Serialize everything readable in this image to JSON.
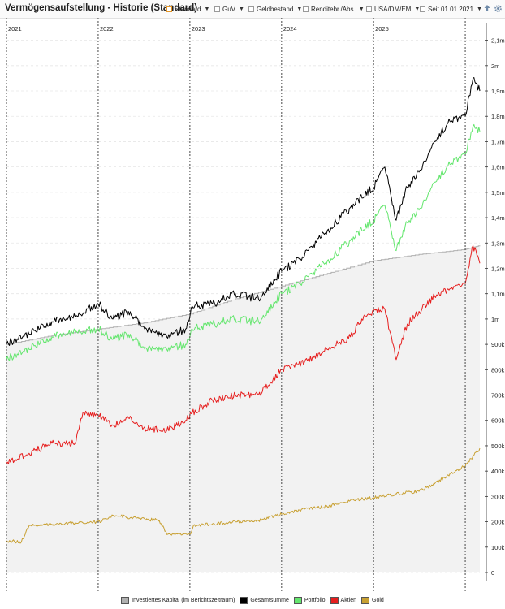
{
  "toolbar": {
    "title": "Vermögensaufstellung - Historie (Standard)",
    "items": [
      {
        "label": "Standard",
        "accent": "#e2962a"
      },
      {
        "label": "GuV"
      },
      {
        "label": "Geldbestand"
      },
      {
        "label": "Renditebr./Abs."
      },
      {
        "label": "USA/DM/EM"
      },
      {
        "label": "Seit 01.01.2021"
      }
    ],
    "icons": [
      "export-icon",
      "gear-icon"
    ]
  },
  "chart_data": {
    "type": "line",
    "x_range": [
      "2021-01-01",
      "2026-02-28"
    ],
    "ylim": [
      0,
      2150000
    ],
    "y_ticks": [
      0,
      100000,
      200000,
      300000,
      400000,
      500000,
      600000,
      700000,
      800000,
      900000,
      1000000,
      1100000,
      1200000,
      1300000,
      1400000,
      1500000,
      1600000,
      1700000,
      1800000,
      1900000,
      2000000,
      2100000
    ],
    "y_tick_labels": [
      "0",
      "100k",
      "200k",
      "300k",
      "400k",
      "500k",
      "600k",
      "700k",
      "800k",
      "900k",
      "1m",
      "1,1m",
      "1,2m",
      "1,3m",
      "1,4m",
      "1,5m",
      "1,6m",
      "1,7m",
      "1,8m",
      "1,9m",
      "2m",
      "2,1m"
    ],
    "year_markers": [
      {
        "date": "2021-01-01",
        "label": "2021"
      },
      {
        "date": "2022-01-01",
        "label": "2022"
      },
      {
        "date": "2023-01-01",
        "label": "2023"
      },
      {
        "date": "2024-01-01",
        "label": "2024"
      },
      {
        "date": "2025-01-01",
        "label": "2025"
      },
      {
        "date": "2026-01-01",
        "label": ""
      }
    ],
    "legend_position": "bottom",
    "series": [
      {
        "name": "Investiertes Kapital (im Berichtszeitraum)",
        "color": "#b0b0b0",
        "fill": "#f2f2f2",
        "area": true,
        "points": [
          [
            "2021-01-01",
            900000
          ],
          [
            "2021-07-01",
            935000
          ],
          [
            "2022-01-01",
            960000
          ],
          [
            "2022-07-01",
            985000
          ],
          [
            "2023-01-01",
            1020000
          ],
          [
            "2023-07-01",
            1080000
          ],
          [
            "2024-01-01",
            1130000
          ],
          [
            "2024-07-01",
            1180000
          ],
          [
            "2025-01-01",
            1230000
          ],
          [
            "2025-07-01",
            1255000
          ],
          [
            "2026-01-01",
            1275000
          ],
          [
            "2026-02-28",
            1290000
          ]
        ]
      },
      {
        "name": "Gesamtsumme",
        "color": "#000000",
        "points": [
          [
            "2021-01-01",
            900000
          ],
          [
            "2021-04-01",
            940000
          ],
          [
            "2021-07-01",
            990000
          ],
          [
            "2021-10-01",
            1010000
          ],
          [
            "2022-01-01",
            1060000
          ],
          [
            "2022-03-01",
            1000000
          ],
          [
            "2022-05-01",
            1030000
          ],
          [
            "2022-07-01",
            970000
          ],
          [
            "2022-10-01",
            930000
          ],
          [
            "2022-12-15",
            960000
          ],
          [
            "2023-01-10",
            1050000
          ],
          [
            "2023-04-01",
            1060000
          ],
          [
            "2023-07-01",
            1100000
          ],
          [
            "2023-10-01",
            1080000
          ],
          [
            "2024-01-01",
            1190000
          ],
          [
            "2024-04-01",
            1250000
          ],
          [
            "2024-07-01",
            1350000
          ],
          [
            "2024-10-01",
            1440000
          ],
          [
            "2025-01-01",
            1520000
          ],
          [
            "2025-02-15",
            1600000
          ],
          [
            "2025-04-01",
            1390000
          ],
          [
            "2025-05-15",
            1520000
          ],
          [
            "2025-07-01",
            1580000
          ],
          [
            "2025-09-01",
            1700000
          ],
          [
            "2025-11-01",
            1780000
          ],
          [
            "2026-01-01",
            1800000
          ],
          [
            "2026-02-01",
            1950000
          ],
          [
            "2026-02-28",
            1900000
          ]
        ]
      },
      {
        "name": "Portfolio",
        "color": "#64e66e",
        "points": [
          [
            "2021-01-01",
            840000
          ],
          [
            "2021-04-01",
            880000
          ],
          [
            "2021-07-01",
            930000
          ],
          [
            "2021-10-01",
            950000
          ],
          [
            "2022-01-01",
            960000
          ],
          [
            "2022-03-01",
            920000
          ],
          [
            "2022-05-01",
            940000
          ],
          [
            "2022-07-01",
            890000
          ],
          [
            "2022-10-01",
            880000
          ],
          [
            "2022-12-15",
            900000
          ],
          [
            "2023-01-10",
            960000
          ],
          [
            "2023-04-01",
            980000
          ],
          [
            "2023-07-01",
            1000000
          ],
          [
            "2023-10-01",
            990000
          ],
          [
            "2024-01-01",
            1100000
          ],
          [
            "2024-04-01",
            1150000
          ],
          [
            "2024-07-01",
            1230000
          ],
          [
            "2024-10-01",
            1310000
          ],
          [
            "2025-01-01",
            1390000
          ],
          [
            "2025-02-15",
            1450000
          ],
          [
            "2025-04-01",
            1270000
          ],
          [
            "2025-05-15",
            1380000
          ],
          [
            "2025-07-01",
            1430000
          ],
          [
            "2025-09-01",
            1540000
          ],
          [
            "2025-11-01",
            1610000
          ],
          [
            "2026-01-01",
            1650000
          ],
          [
            "2026-02-01",
            1760000
          ],
          [
            "2026-02-28",
            1740000
          ]
        ]
      },
      {
        "name": "Aktien",
        "color": "#e61e1e",
        "points": [
          [
            "2021-01-01",
            430000
          ],
          [
            "2021-04-01",
            470000
          ],
          [
            "2021-07-01",
            510000
          ],
          [
            "2021-10-01",
            510000
          ],
          [
            "2021-11-01",
            630000
          ],
          [
            "2022-01-01",
            620000
          ],
          [
            "2022-03-01",
            580000
          ],
          [
            "2022-05-01",
            610000
          ],
          [
            "2022-07-01",
            570000
          ],
          [
            "2022-10-01",
            560000
          ],
          [
            "2022-12-15",
            600000
          ],
          [
            "2023-01-10",
            630000
          ],
          [
            "2023-04-01",
            680000
          ],
          [
            "2023-07-01",
            700000
          ],
          [
            "2023-10-01",
            700000
          ],
          [
            "2024-01-01",
            800000
          ],
          [
            "2024-04-01",
            830000
          ],
          [
            "2024-07-01",
            880000
          ],
          [
            "2024-10-01",
            930000
          ],
          [
            "2024-11-15",
            1000000
          ],
          [
            "2025-01-01",
            1030000
          ],
          [
            "2025-02-15",
            1040000
          ],
          [
            "2025-04-01",
            840000
          ],
          [
            "2025-05-15",
            980000
          ],
          [
            "2025-07-01",
            1030000
          ],
          [
            "2025-09-01",
            1090000
          ],
          [
            "2025-11-01",
            1120000
          ],
          [
            "2026-01-01",
            1140000
          ],
          [
            "2026-02-01",
            1290000
          ],
          [
            "2026-02-28",
            1220000
          ]
        ]
      },
      {
        "name": "Gold",
        "color": "#c8a032",
        "points": [
          [
            "2021-01-01",
            125000
          ],
          [
            "2021-03-01",
            120000
          ],
          [
            "2021-04-01",
            185000
          ],
          [
            "2021-07-01",
            190000
          ],
          [
            "2021-10-01",
            195000
          ],
          [
            "2022-01-01",
            200000
          ],
          [
            "2022-03-01",
            225000
          ],
          [
            "2022-06-01",
            215000
          ],
          [
            "2022-09-01",
            205000
          ],
          [
            "2022-10-01",
            150000
          ],
          [
            "2023-01-01",
            150000
          ],
          [
            "2023-01-15",
            185000
          ],
          [
            "2023-07-01",
            200000
          ],
          [
            "2023-10-01",
            205000
          ],
          [
            "2024-01-01",
            230000
          ],
          [
            "2024-04-01",
            250000
          ],
          [
            "2024-07-01",
            260000
          ],
          [
            "2024-10-01",
            285000
          ],
          [
            "2025-01-01",
            295000
          ],
          [
            "2025-04-01",
            310000
          ],
          [
            "2025-07-01",
            320000
          ],
          [
            "2025-09-01",
            350000
          ],
          [
            "2025-11-01",
            390000
          ],
          [
            "2026-01-01",
            420000
          ],
          [
            "2026-02-28",
            490000
          ]
        ]
      }
    ]
  }
}
